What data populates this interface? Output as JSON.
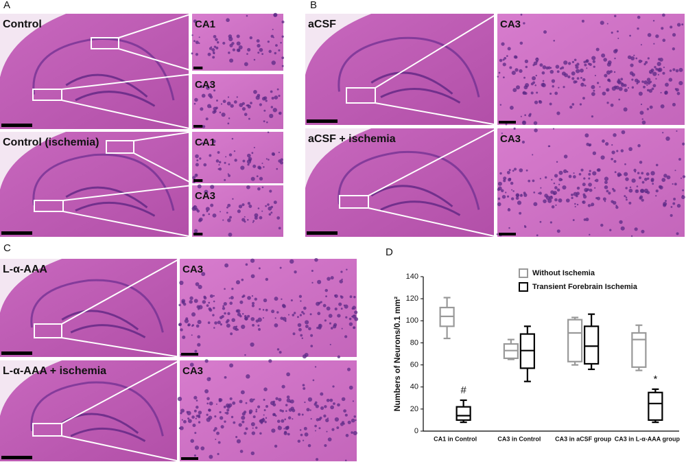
{
  "panels": [
    {
      "letter": "A",
      "images": [
        {
          "label": "Control"
        },
        {
          "label": "CA1"
        },
        {
          "label": "CA3"
        },
        {
          "label": "Control (ischemia)"
        },
        {
          "label": "CA1"
        },
        {
          "label": "CA3"
        }
      ]
    },
    {
      "letter": "B",
      "images": [
        {
          "label": "aCSF"
        },
        {
          "label": "CA3"
        },
        {
          "label": "aCSF + ischemia"
        },
        {
          "label": "CA3"
        }
      ]
    },
    {
      "letter": "C",
      "images": [
        {
          "label": "L-α-AAA"
        },
        {
          "label": "CA3"
        },
        {
          "label": "L-α-AAA + ischemia"
        },
        {
          "label": "CA3"
        }
      ]
    }
  ],
  "chart_data": {
    "type": "box",
    "panel_label": "D",
    "y_label": "Numbers of Neurons/0.1 mm²",
    "categories": [
      "CA1 in Control",
      "CA3 in Control",
      "CA3 in aCSF group",
      "CA3 in L-α-AAA group"
    ],
    "series": [
      {
        "name": "Without Ischemia",
        "color": "#999999",
        "min": [
          84,
          65,
          60,
          55
        ],
        "q1": [
          95,
          66,
          63,
          58
        ],
        "median": [
          104,
          73,
          89,
          83
        ],
        "q3": [
          112,
          79,
          101,
          89
        ],
        "max": [
          121,
          83,
          103,
          96
        ]
      },
      {
        "name": "Transient Forebrain Ischemia",
        "color": "#000000",
        "min": [
          8,
          45,
          56,
          8
        ],
        "q1": [
          10,
          57,
          61,
          10
        ],
        "median": [
          14,
          73,
          77,
          25
        ],
        "q3": [
          22,
          88,
          95,
          35
        ],
        "max": [
          28,
          95,
          106,
          38
        ]
      }
    ],
    "annotations": [
      "#",
      "*"
    ],
    "ylim": [
      0,
      140
    ],
    "yticks": [
      0,
      20,
      40,
      60,
      80,
      100,
      120,
      140
    ],
    "legend": "top"
  }
}
